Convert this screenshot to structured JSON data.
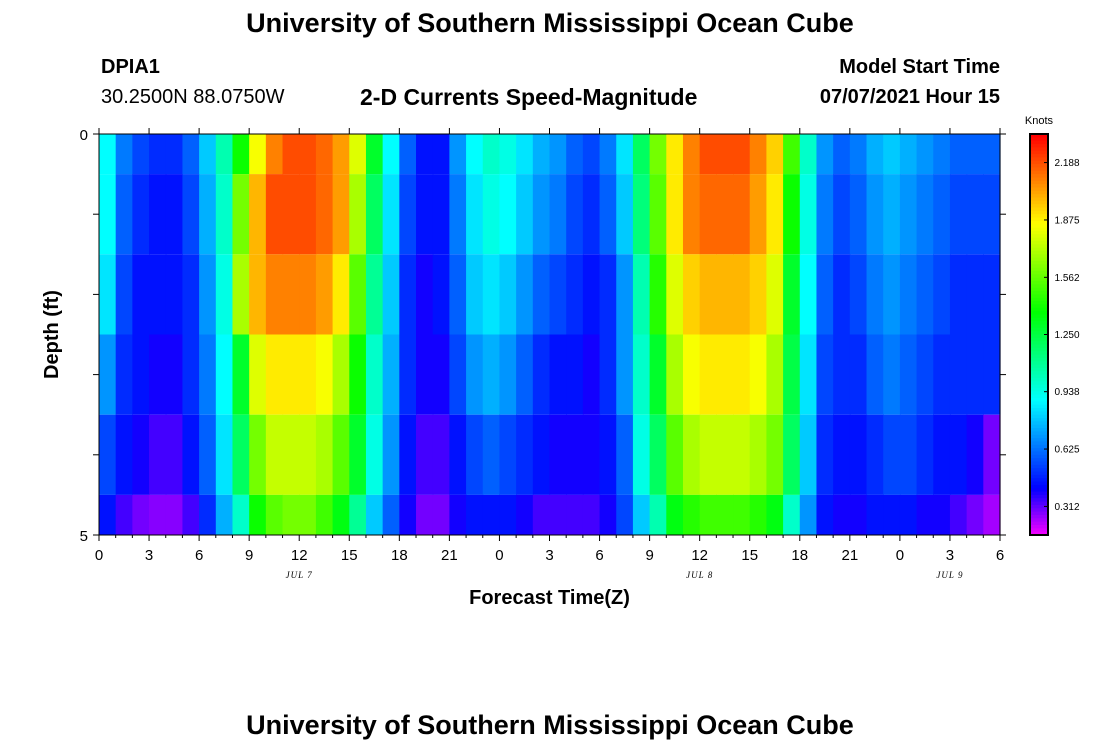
{
  "header": {
    "title": "University of Southern Mississippi Ocean Cube",
    "footer_title": "University of Southern Mississippi Ocean Cube",
    "station": "DPIA1",
    "coords": "30.2500N  88.0750W",
    "plot_title": "2-D Currents Speed-Magnitude",
    "model_label": "Model Start Time",
    "model_time": "07/07/2021 Hour 15"
  },
  "chart_data": {
    "type": "heatmap",
    "title": "2-D Currents Speed-Magnitude",
    "xlabel": "Forecast Time(Z)",
    "ylabel": "Depth (ft)",
    "ylim": [
      0,
      5
    ],
    "y_ticks": [
      "0",
      "5"
    ],
    "x_start_hour": 0,
    "x_end_hour": 54,
    "x_tick_labels": [
      "0",
      "3",
      "6",
      "9",
      "12",
      "15",
      "18",
      "21",
      "0",
      "3",
      "6",
      "9",
      "12",
      "15",
      "18",
      "21",
      "0",
      "3",
      "6"
    ],
    "date_labels": [
      {
        "label": "JUL 7",
        "hour": 12
      },
      {
        "label": "JUL 8",
        "hour": 36
      },
      {
        "label": "JUL 9",
        "hour": 51
      }
    ],
    "colorbar": {
      "unit": "Knots",
      "min": 0.156,
      "max": 2.344,
      "ticks": [
        "2.188",
        "1.875",
        "1.562",
        "1.250",
        "0.938",
        "0.625",
        "0.312"
      ]
    },
    "rows": [
      {
        "depth_top": 0,
        "depth_bottom": 0.5,
        "speeds": [
          0.9,
          0.65,
          0.55,
          0.5,
          0.5,
          0.6,
          0.8,
          1.05,
          1.4,
          1.85,
          2.1,
          2.2,
          2.2,
          2.15,
          2.05,
          1.8,
          1.3,
          0.9,
          0.6,
          0.45,
          0.45,
          0.7,
          0.9,
          1.0,
          0.95,
          0.85,
          0.75,
          0.7,
          0.6,
          0.55,
          0.65,
          0.85,
          1.2,
          1.6,
          1.9,
          2.1,
          2.2,
          2.2,
          2.2,
          2.1,
          1.95,
          1.5,
          1.0,
          0.7,
          0.6,
          0.65,
          0.75,
          0.8,
          0.75,
          0.7,
          0.65,
          0.6,
          0.6,
          0.6
        ]
      },
      {
        "depth_top": 0.5,
        "depth_bottom": 1.5,
        "speeds": [
          0.9,
          0.6,
          0.5,
          0.45,
          0.45,
          0.55,
          0.75,
          1.0,
          1.6,
          2.0,
          2.2,
          2.2,
          2.2,
          2.15,
          2.05,
          1.7,
          1.2,
          0.85,
          0.55,
          0.45,
          0.45,
          0.65,
          0.85,
          0.95,
          0.9,
          0.8,
          0.7,
          0.65,
          0.55,
          0.5,
          0.6,
          0.8,
          1.15,
          1.55,
          1.9,
          2.1,
          2.15,
          2.15,
          2.15,
          2.05,
          1.9,
          1.4,
          0.95,
          0.65,
          0.55,
          0.6,
          0.7,
          0.75,
          0.7,
          0.65,
          0.6,
          0.55,
          0.55,
          0.55
        ]
      },
      {
        "depth_top": 1.5,
        "depth_bottom": 2.5,
        "speeds": [
          0.85,
          0.55,
          0.45,
          0.45,
          0.45,
          0.5,
          0.7,
          0.95,
          1.7,
          2.0,
          2.1,
          2.1,
          2.1,
          2.05,
          1.9,
          1.55,
          1.1,
          0.8,
          0.5,
          0.4,
          0.45,
          0.6,
          0.8,
          0.85,
          0.8,
          0.7,
          0.6,
          0.55,
          0.5,
          0.45,
          0.5,
          0.7,
          1.05,
          1.45,
          1.8,
          1.95,
          2.0,
          2.0,
          2.0,
          1.95,
          1.8,
          1.3,
          0.9,
          0.6,
          0.5,
          0.55,
          0.65,
          0.7,
          0.65,
          0.6,
          0.55,
          0.5,
          0.5,
          0.5
        ]
      },
      {
        "depth_top": 2.5,
        "depth_bottom": 3.5,
        "speeds": [
          0.7,
          0.5,
          0.45,
          0.4,
          0.4,
          0.5,
          0.65,
          0.9,
          1.3,
          1.8,
          1.9,
          1.9,
          1.9,
          1.85,
          1.7,
          1.4,
          1.0,
          0.75,
          0.5,
          0.4,
          0.4,
          0.55,
          0.7,
          0.75,
          0.7,
          0.6,
          0.5,
          0.45,
          0.45,
          0.4,
          0.5,
          0.7,
          1.0,
          1.3,
          1.7,
          1.85,
          1.9,
          1.9,
          1.9,
          1.85,
          1.7,
          1.25,
          0.85,
          0.55,
          0.5,
          0.5,
          0.6,
          0.65,
          0.6,
          0.55,
          0.5,
          0.5,
          0.5,
          0.5
        ]
      },
      {
        "depth_top": 3.5,
        "depth_bottom": 4.5,
        "speeds": [
          0.55,
          0.45,
          0.4,
          0.35,
          0.35,
          0.45,
          0.6,
          0.85,
          1.2,
          1.6,
          1.75,
          1.75,
          1.75,
          1.7,
          1.55,
          1.3,
          0.95,
          0.7,
          0.45,
          0.35,
          0.35,
          0.45,
          0.55,
          0.6,
          0.55,
          0.5,
          0.45,
          0.4,
          0.4,
          0.4,
          0.45,
          0.6,
          0.95,
          1.2,
          1.55,
          1.7,
          1.75,
          1.75,
          1.75,
          1.7,
          1.6,
          1.2,
          0.8,
          0.5,
          0.45,
          0.45,
          0.5,
          0.55,
          0.55,
          0.5,
          0.45,
          0.45,
          0.4,
          0.3
        ]
      },
      {
        "depth_top": 4.5,
        "depth_bottom": 5,
        "speeds": [
          0.45,
          0.35,
          0.3,
          0.28,
          0.28,
          0.35,
          0.5,
          0.75,
          1.0,
          1.4,
          1.55,
          1.6,
          1.6,
          1.5,
          1.35,
          1.1,
          0.8,
          0.6,
          0.4,
          0.3,
          0.3,
          0.4,
          0.45,
          0.45,
          0.45,
          0.4,
          0.35,
          0.35,
          0.35,
          0.35,
          0.4,
          0.55,
          0.8,
          1.05,
          1.35,
          1.45,
          1.5,
          1.5,
          1.5,
          1.45,
          1.35,
          1.0,
          0.7,
          0.45,
          0.4,
          0.4,
          0.45,
          0.45,
          0.45,
          0.4,
          0.4,
          0.35,
          0.3,
          0.25
        ]
      }
    ]
  }
}
